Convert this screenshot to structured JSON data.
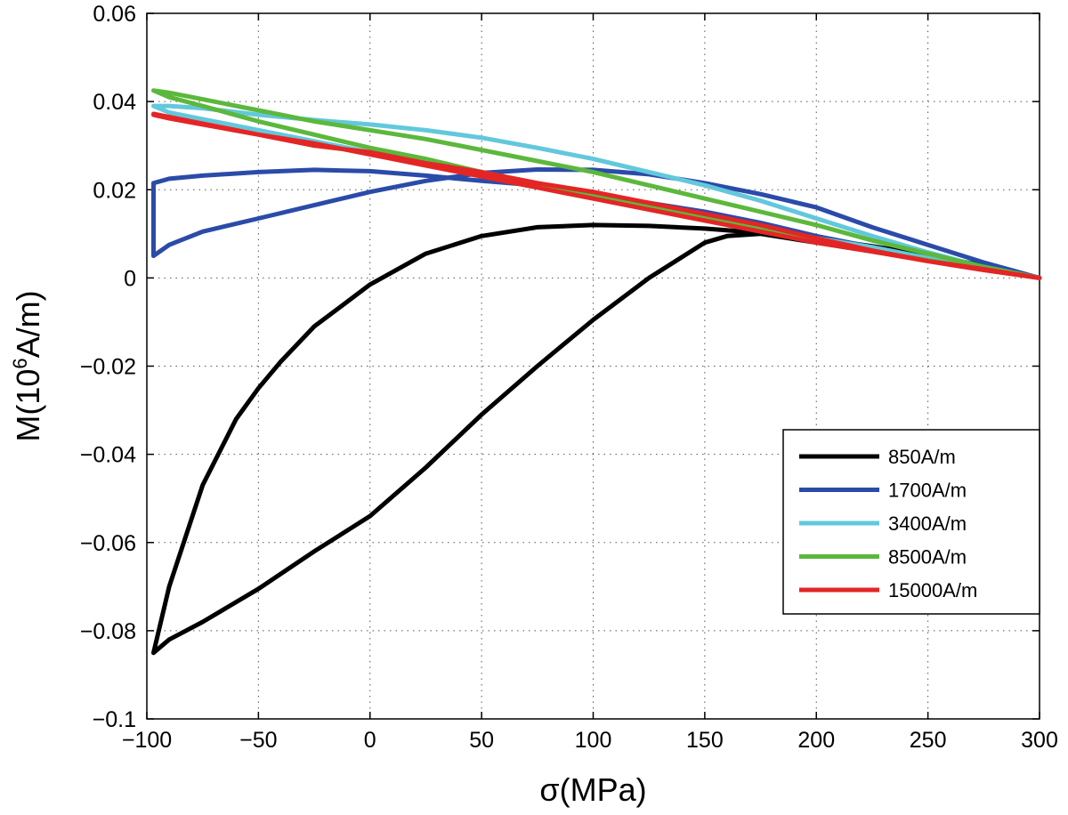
{
  "chart_data": {
    "type": "line",
    "xlabel": "σ(MPa)",
    "ylabel_main": "M(10",
    "ylabel_sup": "6",
    "ylabel_tail": "A/m)",
    "xlim": [
      -100,
      300
    ],
    "ylim": [
      -0.1,
      0.06
    ],
    "xticks": [
      -100,
      -50,
      0,
      50,
      100,
      150,
      200,
      250,
      300
    ],
    "yticks": [
      -0.1,
      -0.08,
      -0.06,
      -0.04,
      -0.02,
      0,
      0.02,
      0.04,
      0.06
    ],
    "xtick_labels": [
      "−100",
      "−50",
      "0",
      "50",
      "100",
      "150",
      "200",
      "250",
      "300"
    ],
    "ytick_labels": [
      "−0.1",
      "−0.08",
      "−0.06",
      "−0.04",
      "−0.02",
      "0",
      "0.02",
      "0.04",
      "0.06"
    ],
    "grid": true,
    "grid_style": "dotted",
    "legend_position": "lower-right",
    "series": [
      {
        "name": "850A/m",
        "color": "#000000",
        "x": [
          300,
          250,
          200,
          175,
          160,
          150,
          125,
          100,
          75,
          50,
          25,
          0,
          -25,
          -50,
          -75,
          -90,
          -97,
          -97,
          -90,
          -75,
          -60,
          -50,
          -40,
          -25,
          0,
          25,
          50,
          75,
          100,
          125,
          150,
          175,
          200,
          225,
          250,
          275,
          300
        ],
        "y": [
          0,
          0.004,
          0.008,
          0.01,
          0.0095,
          0.008,
          0,
          -0.0095,
          -0.02,
          -0.031,
          -0.043,
          -0.054,
          -0.062,
          -0.0705,
          -0.078,
          -0.082,
          -0.085,
          -0.085,
          -0.07,
          -0.047,
          -0.032,
          -0.025,
          -0.019,
          -0.011,
          -0.0015,
          0.0055,
          0.0095,
          0.0115,
          0.012,
          0.0118,
          0.0112,
          0.0102,
          0.009,
          0.0072,
          0.0052,
          0.0028,
          0
        ]
      },
      {
        "name": "1700A/m",
        "color": "#2b4ba8",
        "x": [
          300,
          275,
          250,
          225,
          200,
          175,
          150,
          125,
          100,
          75,
          50,
          25,
          0,
          -25,
          -50,
          -75,
          -90,
          -97,
          -97,
          -90,
          -75,
          -50,
          -25,
          0,
          25,
          50,
          75,
          100,
          125,
          150,
          175,
          200,
          225,
          250,
          275,
          300
        ],
        "y": [
          0,
          0.002,
          0.0045,
          0.007,
          0.0095,
          0.0125,
          0.015,
          0.017,
          0.019,
          0.021,
          0.022,
          0.0232,
          0.0242,
          0.0245,
          0.024,
          0.0232,
          0.0225,
          0.0215,
          0.005,
          0.0075,
          0.0105,
          0.0135,
          0.0165,
          0.0195,
          0.022,
          0.0238,
          0.0246,
          0.0245,
          0.0235,
          0.0215,
          0.019,
          0.016,
          0.0115,
          0.0075,
          0.0035,
          0
        ]
      },
      {
        "name": "3400A/m",
        "color": "#62c8dc",
        "x": [
          300,
          275,
          250,
          225,
          200,
          175,
          150,
          125,
          100,
          75,
          50,
          25,
          0,
          -25,
          -50,
          -75,
          -90,
          -97,
          -97,
          -90,
          -75,
          -50,
          -25,
          0,
          25,
          50,
          75,
          100,
          125,
          150,
          175,
          200,
          225,
          250,
          275,
          300
        ],
        "y": [
          0,
          0.0025,
          0.0045,
          0.007,
          0.009,
          0.011,
          0.0135,
          0.016,
          0.0185,
          0.021,
          0.0235,
          0.026,
          0.0285,
          0.031,
          0.0335,
          0.036,
          0.0375,
          0.039,
          0.039,
          0.039,
          0.0385,
          0.037,
          0.0358,
          0.0348,
          0.0335,
          0.0318,
          0.0295,
          0.027,
          0.024,
          0.021,
          0.0175,
          0.0135,
          0.0095,
          0.0058,
          0.0025,
          0
        ]
      },
      {
        "name": "8500A/m",
        "color": "#5cb83c",
        "x": [
          300,
          275,
          250,
          225,
          200,
          175,
          150,
          125,
          100,
          75,
          50,
          25,
          0,
          -25,
          -50,
          -75,
          -90,
          -97,
          -97,
          -90,
          -75,
          -50,
          -25,
          0,
          25,
          50,
          75,
          100,
          125,
          150,
          175,
          200,
          225,
          250,
          275,
          300
        ],
        "y": [
          0,
          0.002,
          0.004,
          0.006,
          0.0085,
          0.011,
          0.0135,
          0.016,
          0.019,
          0.0215,
          0.024,
          0.027,
          0.0295,
          0.0325,
          0.0355,
          0.039,
          0.041,
          0.0425,
          0.0425,
          0.042,
          0.0405,
          0.038,
          0.0355,
          0.0335,
          0.0315,
          0.029,
          0.0265,
          0.024,
          0.021,
          0.018,
          0.015,
          0.012,
          0.0085,
          0.0055,
          0.0025,
          0
        ]
      },
      {
        "name": "15000A/m",
        "color": "#e42525",
        "x": [
          300,
          275,
          250,
          225,
          200,
          175,
          150,
          125,
          100,
          75,
          50,
          25,
          0,
          -25,
          -50,
          -75,
          -90,
          -97,
          -97,
          -90,
          -75,
          -50,
          -25,
          0,
          25,
          50,
          75,
          100,
          125,
          150,
          175,
          200,
          225,
          250,
          275,
          300
        ],
        "y": [
          0,
          0.002,
          0.0038,
          0.006,
          0.008,
          0.0105,
          0.013,
          0.0155,
          0.018,
          0.0205,
          0.023,
          0.0255,
          0.028,
          0.0305,
          0.0325,
          0.0348,
          0.0362,
          0.037,
          0.0372,
          0.0365,
          0.035,
          0.0325,
          0.03,
          0.0285,
          0.026,
          0.024,
          0.0215,
          0.0195,
          0.017,
          0.0145,
          0.012,
          0.009,
          0.0062,
          0.0038,
          0.0018,
          0
        ]
      }
    ]
  }
}
